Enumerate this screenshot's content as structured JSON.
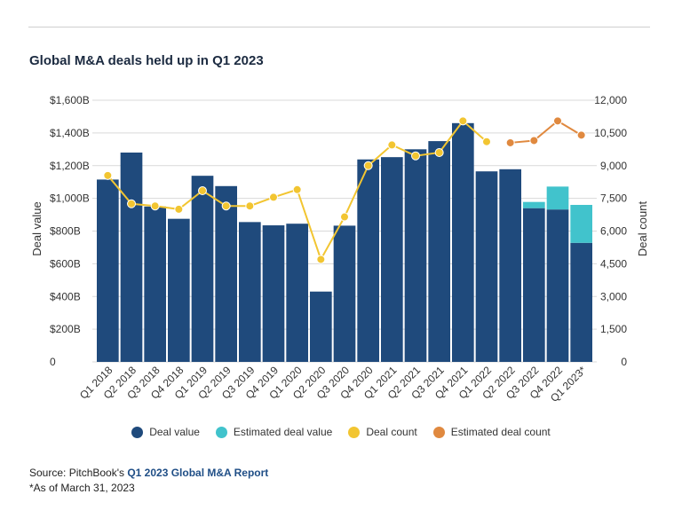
{
  "page": {
    "title": "Global M&A deals held up in Q1 2023",
    "source_prefix": "Source: PitchBook's ",
    "source_report": "Q1 2023 Global M&A Report",
    "note": "*As of March 31, 2023"
  },
  "legend": [
    {
      "label": "Deal value",
      "color": "#1f4a7c"
    },
    {
      "label": "Estimated deal value",
      "color": "#41c3cc"
    },
    {
      "label": "Deal count",
      "color": "#f2c531"
    },
    {
      "label": "Estimated deal count",
      "color": "#e0893f"
    }
  ],
  "chart_data": {
    "type": "bar",
    "categories": [
      "Q1 2018",
      "Q2 2018",
      "Q3 2018",
      "Q4 2018",
      "Q1 2019",
      "Q2 2019",
      "Q3 2019",
      "Q4 2019",
      "Q1 2020",
      "Q2 2020",
      "Q3 2020",
      "Q4 2020",
      "Q1 2021",
      "Q2 2021",
      "Q3 2021",
      "Q4 2021",
      "Q1 2022",
      "Q2 2022",
      "Q3 2022",
      "Q4 2022",
      "Q1 2023*"
    ],
    "ylabel": "Deal value",
    "y2label": "Deal count",
    "ylim": [
      0,
      1600
    ],
    "y2lim": [
      0,
      12000
    ],
    "yticks": [
      "0",
      "$200B",
      "$400B",
      "$600B",
      "$800B",
      "$1,000B",
      "$1,200B",
      "$1,400B",
      "$1,600B"
    ],
    "y2ticks": [
      "0",
      "1,500",
      "3,000",
      "4,500",
      "6,000",
      "7,500",
      "9,000",
      "10,500",
      "12,000"
    ],
    "grid": "horizontal",
    "legend_position": "bottom",
    "series": [
      {
        "name": "Deal value",
        "kind": "bar",
        "color": "#1f4a7c",
        "values": [
          1115,
          1280,
          950,
          875,
          1138,
          1075,
          855,
          835,
          845,
          430,
          833,
          1238,
          1252,
          1300,
          1350,
          1460,
          1165,
          1178,
          940,
          932,
          728
        ]
      },
      {
        "name": "Estimated deal value",
        "kind": "bar-stack",
        "color": "#41c3cc",
        "values": [
          0,
          0,
          0,
          0,
          0,
          0,
          0,
          0,
          0,
          0,
          0,
          0,
          0,
          0,
          0,
          0,
          0,
          0,
          38,
          140,
          232
        ]
      },
      {
        "name": "Deal count",
        "kind": "line",
        "color": "#f2c531",
        "values": [
          8550,
          7250,
          7150,
          7000,
          7850,
          7150,
          7150,
          7550,
          7900,
          4700,
          6650,
          9000,
          9950,
          9450,
          9600,
          11050,
          10100,
          null,
          null,
          null,
          null
        ]
      },
      {
        "name": "Estimated deal count",
        "kind": "line",
        "color": "#e0893f",
        "values": [
          null,
          null,
          null,
          null,
          null,
          null,
          null,
          null,
          null,
          null,
          null,
          null,
          null,
          null,
          null,
          null,
          null,
          10050,
          10150,
          11050,
          10400
        ]
      }
    ]
  }
}
